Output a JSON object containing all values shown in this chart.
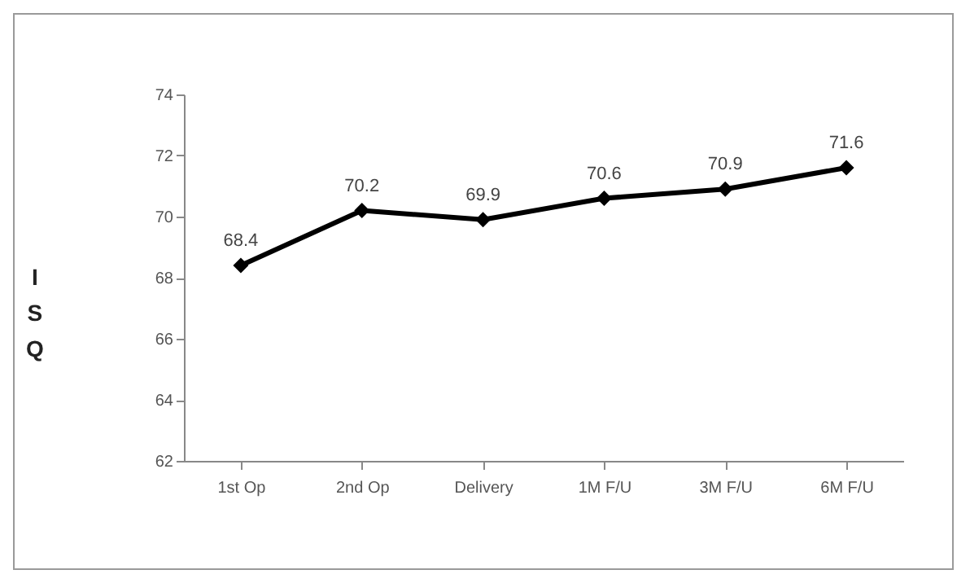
{
  "chart_data": {
    "type": "line",
    "ylabel": "ISQ",
    "categories": [
      "1st Op",
      "2nd Op",
      "Delivery",
      "1M F/U",
      "3M F/U",
      "6M F/U"
    ],
    "series": [
      {
        "color": "#000000",
        "values": [
          68.4,
          70.2,
          69.9,
          70.6,
          70.9,
          71.6
        ]
      }
    ],
    "ylim": [
      62,
      74
    ],
    "yticks": [
      62,
      64,
      66,
      68,
      70,
      72,
      74
    ],
    "grid": false,
    "legend": false,
    "marker": "diamond",
    "line_style": "solid",
    "data_labels": true
  }
}
